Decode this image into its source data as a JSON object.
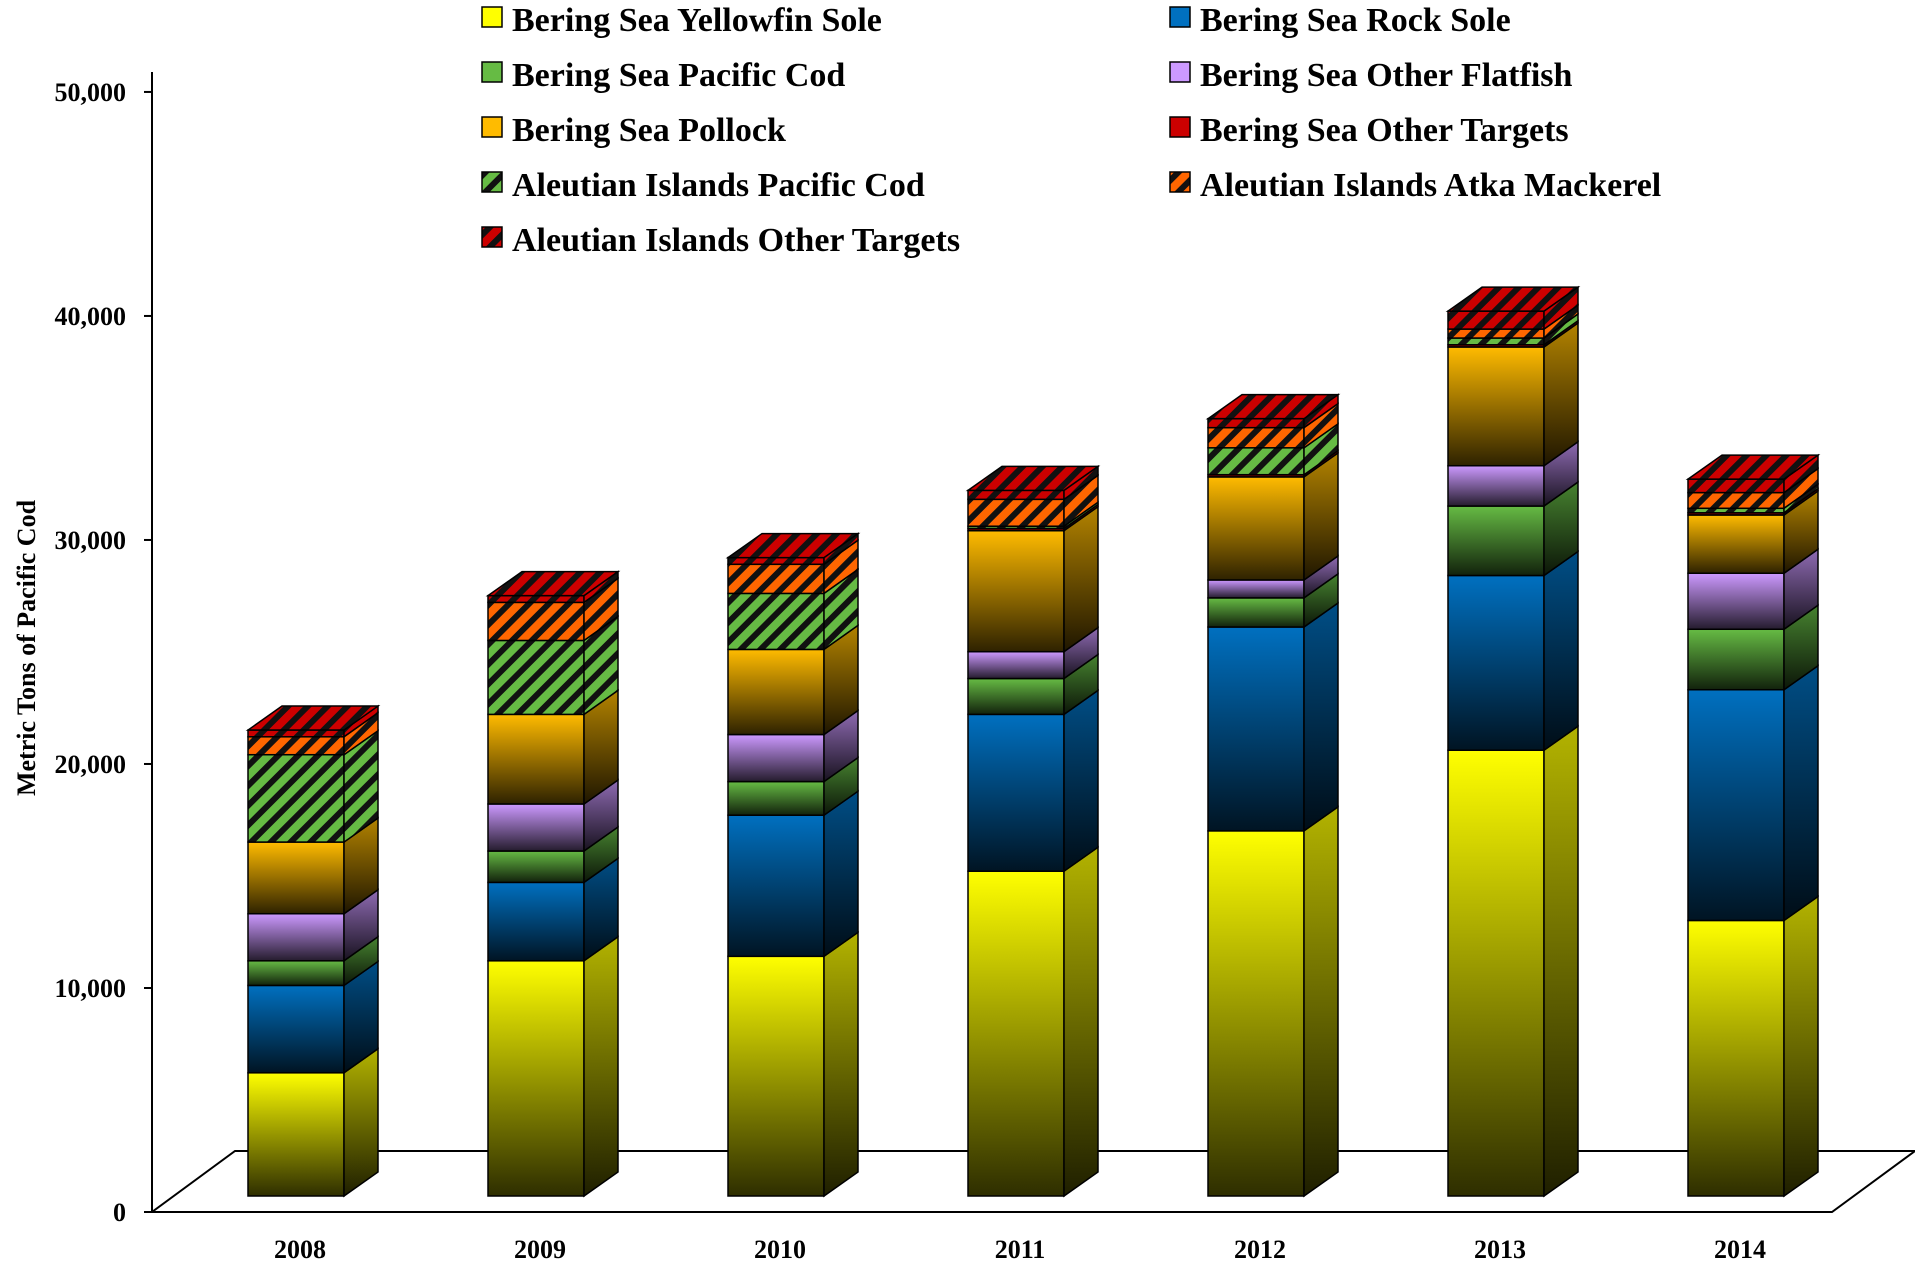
{
  "chart_data": {
    "type": "bar",
    "stacked": true,
    "three_d": true,
    "title": "",
    "xlabel": "",
    "ylabel": "Metric Tons of Pacific Cod",
    "ylim": [
      0,
      50000
    ],
    "y_ticks": [
      "0",
      "10,000",
      "20,000",
      "30,000",
      "40,000",
      "50,000"
    ],
    "y_tick_values": [
      0,
      10000,
      20000,
      30000,
      40000,
      50000
    ],
    "grid": false,
    "legend_position": "top",
    "categories": [
      "2008",
      "2009",
      "2010",
      "2011",
      "2012",
      "2013",
      "2014"
    ],
    "series": [
      {
        "name": "Bering Sea Yellowfin Sole",
        "color": "#ffff00",
        "pattern": "solid",
        "values": [
          5500,
          10500,
          10700,
          14500,
          16300,
          19900,
          12300
        ]
      },
      {
        "name": "Bering Sea Rock Sole",
        "color": "#0070c0",
        "pattern": "solid",
        "values": [
          3900,
          3500,
          6300,
          7000,
          9100,
          7800,
          10300
        ]
      },
      {
        "name": "Bering Sea Pacific Cod",
        "color": "#66bb44",
        "pattern": "solid",
        "values": [
          1100,
          1400,
          1500,
          1600,
          1300,
          3100,
          2700
        ]
      },
      {
        "name": "Bering Sea Other Flatfish",
        "color": "#cc99ff",
        "pattern": "solid",
        "values": [
          2100,
          2100,
          2100,
          1200,
          800,
          1800,
          2500
        ]
      },
      {
        "name": "Bering Sea Pollock",
        "color": "#ffbb00",
        "pattern": "solid",
        "values": [
          3200,
          4000,
          3800,
          5400,
          4600,
          5300,
          2600
        ]
      },
      {
        "name": "Bering Sea Other Targets",
        "color": "#cc0000",
        "pattern": "solid",
        "values": [
          0,
          0,
          0,
          100,
          100,
          100,
          100
        ]
      },
      {
        "name": "Aleutian Islands Pacific Cod",
        "color": "#66bb44",
        "pattern": "hatch",
        "values": [
          3900,
          3300,
          2500,
          100,
          1200,
          300,
          200
        ]
      },
      {
        "name": "Aleutian Islands Atka Mackerel",
        "color": "#ff6600",
        "pattern": "hatch",
        "values": [
          800,
          1700,
          1300,
          1200,
          900,
          400,
          700
        ]
      },
      {
        "name": "Aleutian Islands Other Targets",
        "color": "#cc0000",
        "pattern": "hatch",
        "values": [
          300,
          300,
          300,
          400,
          400,
          800,
          600
        ]
      }
    ]
  }
}
